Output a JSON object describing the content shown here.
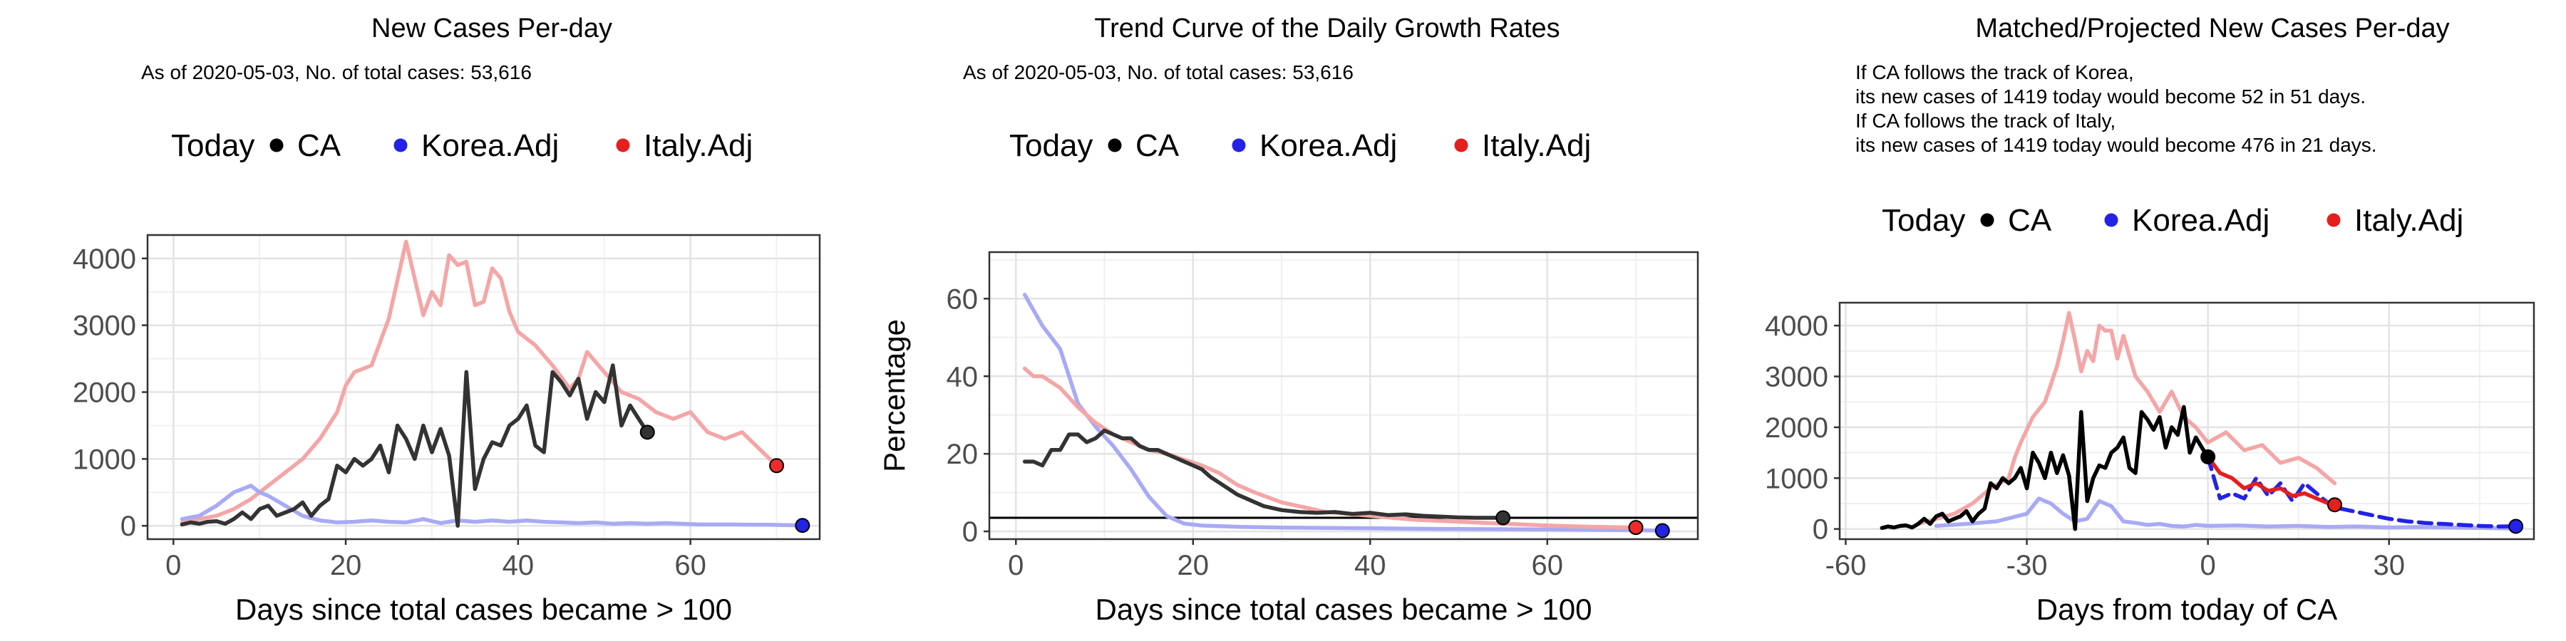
{
  "chart_data": [
    {
      "type": "line",
      "title": "New Cases Per-day",
      "subtitle": "As of 2020-05-03, No. of total cases: 53,616",
      "xlabel": "Days since total cases became > 100",
      "ylabel": "",
      "xlim": [
        -3,
        75
      ],
      "ylim": [
        -200,
        4350
      ],
      "xticks": [
        0,
        20,
        40,
        60
      ],
      "yticks": [
        0,
        1000,
        2000,
        3000,
        4000
      ],
      "grid": true,
      "legend": {
        "position": "top",
        "title": "Today",
        "entries": [
          "CA",
          "Korea.Adj",
          "Italy.Adj"
        ]
      },
      "series": [
        {
          "name": "Italy.Adj",
          "color": "#f4a6a6",
          "today_color": "#ee2b2b",
          "x": [
            1,
            3,
            5,
            7,
            9,
            11,
            13,
            15,
            17,
            19,
            20,
            21,
            23,
            25,
            27,
            28,
            29,
            30,
            31,
            32,
            33,
            34,
            35,
            36,
            37,
            38,
            39,
            40,
            42,
            44,
            46,
            47,
            48,
            50,
            52,
            54,
            56,
            58,
            60,
            62,
            64,
            66,
            68,
            70
          ],
          "y": [
            50,
            100,
            150,
            250,
            400,
            600,
            800,
            1000,
            1300,
            1700,
            2100,
            2300,
            2400,
            3100,
            4250,
            3700,
            3150,
            3500,
            3300,
            4050,
            3900,
            3950,
            3300,
            3350,
            3850,
            3700,
            3200,
            2900,
            2700,
            2400,
            2050,
            2200,
            2600,
            2300,
            2000,
            1900,
            1700,
            1600,
            1700,
            1400,
            1300,
            1400,
            1150,
            900
          ],
          "today": [
            70,
            900
          ]
        },
        {
          "name": "Korea.Adj",
          "color": "#a9aaf4",
          "today_color": "#2323e6",
          "x": [
            1,
            3,
            5,
            7,
            9,
            10,
            11,
            13,
            15,
            17,
            19,
            21,
            23,
            25,
            27,
            29,
            31,
            33,
            35,
            37,
            39,
            41,
            43,
            45,
            47,
            49,
            51,
            53,
            55,
            57,
            59,
            61,
            63,
            65,
            67,
            69,
            71,
            73
          ],
          "y": [
            100,
            150,
            300,
            500,
            600,
            500,
            450,
            300,
            150,
            80,
            50,
            60,
            80,
            60,
            50,
            100,
            40,
            80,
            60,
            80,
            60,
            80,
            60,
            50,
            40,
            50,
            30,
            40,
            30,
            40,
            30,
            20,
            20,
            20,
            15,
            15,
            10,
            5
          ],
          "today": [
            73,
            5
          ]
        },
        {
          "name": "CA",
          "color": "#333333",
          "today_color": "#333333",
          "x": [
            1,
            2,
            3,
            4,
            5,
            6,
            7,
            8,
            9,
            10,
            11,
            12,
            13,
            14,
            15,
            16,
            17,
            18,
            19,
            20,
            21,
            22,
            23,
            24,
            25,
            26,
            27,
            28,
            29,
            30,
            31,
            32,
            33,
            34,
            35,
            36,
            37,
            38,
            39,
            40,
            41,
            42,
            43,
            44,
            45,
            46,
            47,
            48,
            49,
            50,
            51,
            52,
            53,
            54,
            55
          ],
          "y": [
            20,
            50,
            30,
            60,
            70,
            30,
            100,
            200,
            100,
            250,
            300,
            150,
            200,
            250,
            350,
            150,
            300,
            400,
            900,
            800,
            1000,
            900,
            1000,
            1200,
            800,
            1500,
            1300,
            1000,
            1500,
            1100,
            1450,
            1050,
            0,
            2300,
            550,
            1000,
            1250,
            1200,
            1500,
            1600,
            1800,
            1200,
            1100,
            2300,
            2150,
            1950,
            2200,
            1600,
            2000,
            1850,
            2400,
            1500,
            1800,
            1600,
            1400
          ],
          "today": [
            55,
            1400
          ]
        }
      ]
    },
    {
      "type": "line",
      "title": "Trend Curve of the Daily Growth Rates",
      "subtitle": "As of 2020-05-03, No. of total cases: 53,616",
      "xlabel": "Days since total cases became > 100",
      "ylabel": "Percentage",
      "xlim": [
        -3,
        77
      ],
      "ylim": [
        -2,
        72
      ],
      "xticks": [
        0,
        20,
        40,
        60
      ],
      "yticks": [
        0,
        20,
        40,
        60
      ],
      "grid": true,
      "hline": 3.5,
      "legend": {
        "position": "top",
        "title": "Today",
        "entries": [
          "CA",
          "Korea.Adj",
          "Italy.Adj"
        ]
      },
      "series": [
        {
          "name": "Korea.Adj",
          "color": "#a9aaf4",
          "today_color": "#2323e6",
          "x": [
            1,
            3,
            5,
            7,
            9,
            11,
            13,
            15,
            17,
            19,
            21,
            25,
            30,
            40,
            50,
            60,
            70,
            73
          ],
          "y": [
            61,
            53,
            47,
            33,
            27,
            22,
            16,
            9,
            4,
            2,
            1.5,
            1.2,
            1,
            0.8,
            0.6,
            0.5,
            0.3,
            0.2
          ],
          "today": [
            73,
            0.2
          ]
        },
        {
          "name": "Italy.Adj",
          "color": "#f4a6a6",
          "today_color": "#ee2b2b",
          "x": [
            1,
            2,
            3,
            5,
            7,
            9,
            11,
            13,
            15,
            17,
            19,
            21,
            23,
            25,
            27,
            30,
            35,
            40,
            45,
            50,
            55,
            60,
            65,
            70
          ],
          "y": [
            42,
            40,
            40,
            37,
            32,
            28,
            25,
            23,
            21,
            20,
            18.5,
            17,
            15,
            12,
            10,
            7.5,
            5,
            4,
            3,
            2.5,
            2,
            1.5,
            1.2,
            1
          ],
          "today": [
            70,
            1
          ]
        },
        {
          "name": "CA",
          "color": "#333333",
          "today_color": "#333333",
          "x": [
            1,
            2,
            3,
            4,
            5,
            6,
            7,
            8,
            9,
            10,
            11,
            12,
            13,
            14,
            15,
            16,
            17,
            18,
            19,
            20,
            21,
            22,
            23,
            24,
            25,
            26,
            27,
            28,
            29,
            30,
            32,
            34,
            36,
            38,
            40,
            42,
            44,
            46,
            48,
            50,
            52,
            55
          ],
          "y": [
            18,
            18,
            17,
            21,
            21,
            25,
            25,
            23,
            24,
            26,
            25,
            24,
            24,
            22,
            21,
            21,
            20,
            19,
            18,
            17,
            16,
            14,
            12.5,
            11,
            9.5,
            8.5,
            7.5,
            6.5,
            6,
            5.5,
            5,
            4.8,
            5,
            4.5,
            4.8,
            4.2,
            4.4,
            4,
            3.8,
            3.6,
            3.5,
            3.5
          ],
          "today": [
            55,
            3.5
          ]
        }
      ]
    },
    {
      "type": "line",
      "title": "Matched/Projected New Cases Per-day",
      "annotations": [
        "If CA follows the track of Korea,",
        "its new cases of 1419 today would become 52 in 51 days.",
        "If CA follows the track of Italy,",
        "its new cases of 1419 today would become 476 in 21 days."
      ],
      "xlabel": "Days from today of CA",
      "ylabel": "",
      "xlim": [
        -61,
        54
      ],
      "ylim": [
        -200,
        4450
      ],
      "xticks": [
        -60,
        -30,
        0,
        30
      ],
      "yticks": [
        0,
        1000,
        2000,
        3000,
        4000
      ],
      "grid": true,
      "legend": {
        "position": "top",
        "title": "Today",
        "entries": [
          "CA",
          "Korea.Adj",
          "Italy.Adj"
        ]
      },
      "series": [
        {
          "name": "Italy.Adj (history)",
          "color": "#f4a6a6",
          "x": [
            -48,
            -45,
            -42,
            -39,
            -36,
            -33,
            -32,
            -31,
            -29,
            -27,
            -25,
            -24,
            -23,
            -22,
            -21,
            -20,
            -19,
            -18,
            -17,
            -16,
            -15,
            -14,
            -12,
            -10,
            -8,
            -6,
            -4,
            -2,
            0,
            3,
            6,
            9,
            12,
            15,
            18,
            21
          ],
          "y": [
            100,
            200,
            300,
            500,
            800,
            1000,
            1400,
            1700,
            2200,
            2500,
            3200,
            3700,
            4250,
            3700,
            3100,
            3500,
            3300,
            4000,
            3900,
            3900,
            3350,
            3800,
            3000,
            2700,
            2300,
            2700,
            2200,
            2000,
            1700,
            1900,
            1550,
            1650,
            1300,
            1400,
            1200,
            900
          ],
          "today": null
        },
        {
          "name": "Korea.Adj (history)",
          "color": "#a9aaf4",
          "x": [
            -45,
            -40,
            -35,
            -30,
            -28,
            -26,
            -24,
            -22,
            -20,
            -18,
            -16,
            -14,
            -12,
            -10,
            -8,
            -6,
            -4,
            -2,
            0,
            5,
            10,
            15,
            20,
            25,
            30,
            35,
            40,
            45,
            50
          ],
          "y": [
            60,
            100,
            150,
            300,
            600,
            500,
            300,
            150,
            200,
            550,
            450,
            150,
            120,
            80,
            100,
            60,
            50,
            80,
            60,
            70,
            50,
            60,
            40,
            50,
            30,
            40,
            30,
            20,
            10
          ],
          "today": null
        },
        {
          "name": "CA",
          "color": "#000000",
          "today_color": "#000000",
          "x": [
            -54,
            -53,
            -52,
            -51,
            -50,
            -49,
            -48,
            -47,
            -46,
            -45,
            -44,
            -43,
            -42,
            -41,
            -40,
            -39,
            -38,
            -37,
            -36,
            -35,
            -34,
            -33,
            -32,
            -31,
            -30,
            -29,
            -28,
            -27,
            -26,
            -25,
            -24,
            -23,
            -22,
            -21,
            -20,
            -19,
            -18,
            -17,
            -16,
            -15,
            -14,
            -13,
            -12,
            -11,
            -10,
            -9,
            -8,
            -7,
            -6,
            -5,
            -4,
            -3,
            -2,
            -1,
            0
          ],
          "y": [
            20,
            50,
            30,
            60,
            70,
            30,
            100,
            200,
            100,
            250,
            300,
            150,
            200,
            250,
            350,
            150,
            300,
            400,
            900,
            800,
            1000,
            900,
            1000,
            1200,
            800,
            1500,
            1300,
            1000,
            1500,
            1100,
            1450,
            1050,
            0,
            2300,
            550,
            1000,
            1250,
            1200,
            1500,
            1600,
            1800,
            1200,
            1100,
            2300,
            2150,
            1950,
            2200,
            1600,
            2000,
            1850,
            2400,
            1500,
            1800,
            1600,
            1419
          ],
          "today": [
            0,
            1419
          ]
        },
        {
          "name": "Korea.Adj",
          "color": "#2222e8",
          "today_color": "#2222e8",
          "x": [
            0,
            1,
            2,
            4,
            6,
            8,
            10,
            12,
            14,
            16,
            18,
            20,
            22,
            24,
            26,
            28,
            30,
            33,
            36,
            39,
            42,
            45,
            48,
            51
          ],
          "y": [
            1419,
            1000,
            600,
            700,
            600,
            1000,
            650,
            900,
            550,
            900,
            700,
            500,
            400,
            350,
            300,
            250,
            200,
            150,
            120,
            100,
            80,
            60,
            50,
            52
          ],
          "today": [
            51,
            52
          ]
        },
        {
          "name": "Italy.Adj",
          "color": "#e51e1e",
          "today_color": "#e51e1e",
          "x": [
            0,
            2,
            4,
            6,
            8,
            10,
            12,
            14,
            16,
            18,
            20,
            21
          ],
          "y": [
            1419,
            1100,
            1000,
            800,
            900,
            750,
            800,
            650,
            700,
            600,
            500,
            476
          ],
          "today": [
            21,
            476
          ]
        }
      ]
    }
  ],
  "legend_colors": {
    "CA": "#000000",
    "Korea.Adj": "#2222e8",
    "Italy.Adj": "#e51e1e"
  }
}
